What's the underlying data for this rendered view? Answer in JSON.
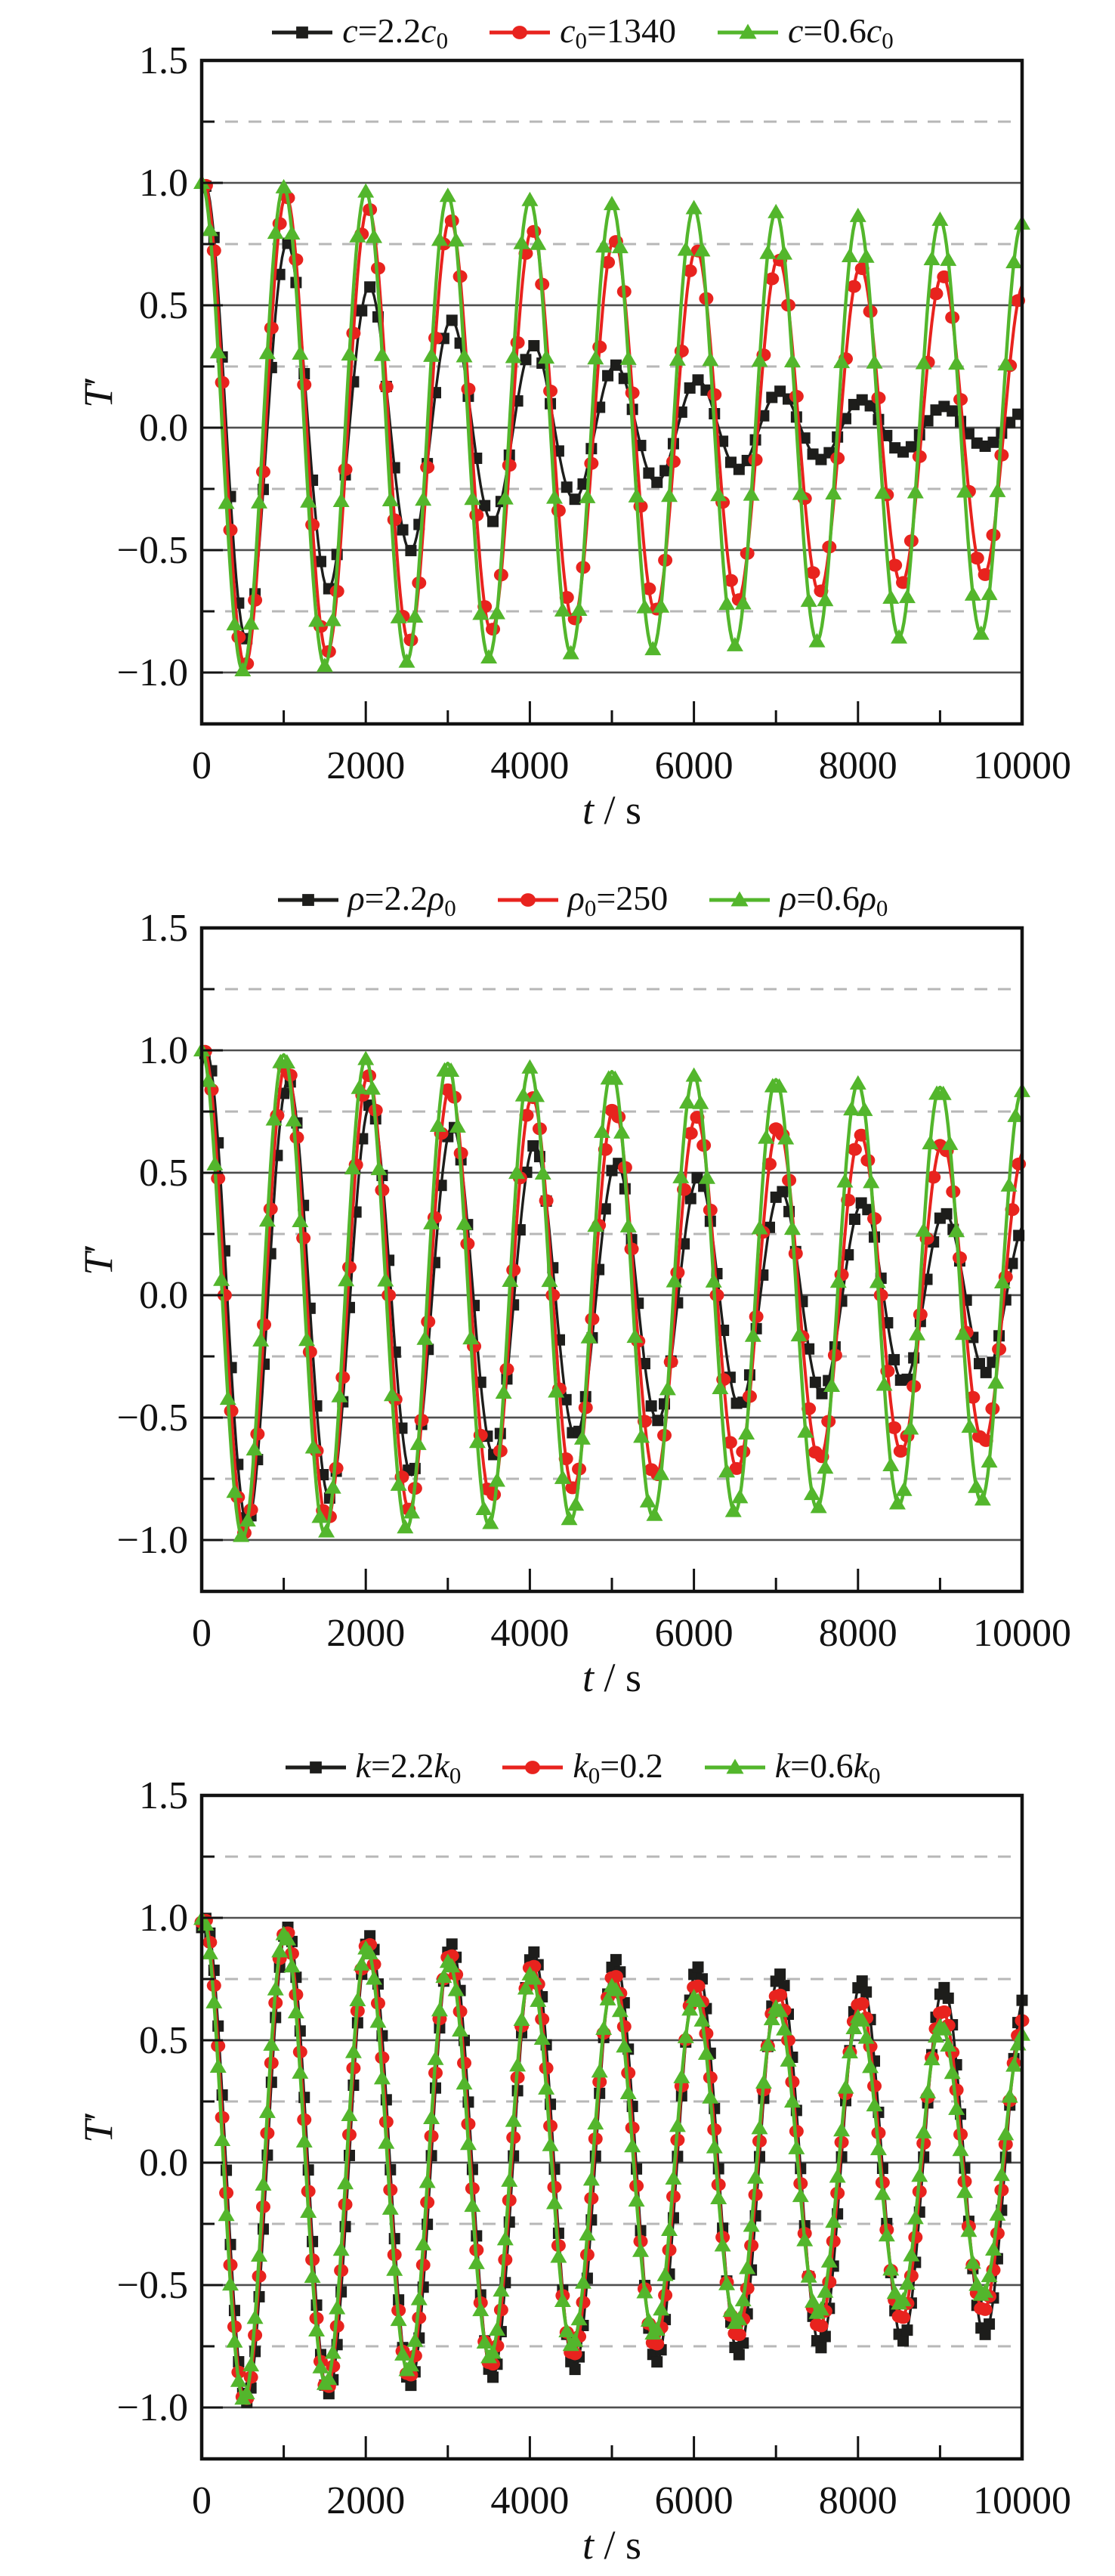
{
  "page": {
    "background": "#ffffff"
  },
  "colors": {
    "black_series": "#1d1d1b",
    "red_series": "#e8231e",
    "green_series": "#53b62c",
    "solid_grid": "#4f4f4f",
    "dashed_grid": "#b7b7b7",
    "spine": "#121212",
    "text": "#111111"
  },
  "axes": {
    "x": {
      "min": 0,
      "max": 10000,
      "major_step": 2000,
      "minor_step": 1000,
      "tick_values": [
        0,
        2000,
        4000,
        6000,
        8000,
        10000
      ],
      "tick_labels": [
        "0",
        "2000",
        "4000",
        "6000",
        "8000",
        "10000"
      ],
      "label_segments": [
        {
          "t": "t",
          "it": true
        },
        {
          "t": " / "
        },
        {
          "t": "s"
        }
      ]
    },
    "y": {
      "min": -1.21,
      "max": 1.5,
      "major_step": 0.5,
      "minor_step": 0.25,
      "tick_values": [
        1.5,
        1.0,
        0.5,
        0.0,
        -0.5,
        -1.0
      ],
      "tick_labels": [
        "1.5",
        "1.0",
        "0.5",
        "0.0",
        "−0.5",
        "−1.0"
      ],
      "minor_tick_values": [
        1.25,
        0.75,
        0.25,
        -0.25,
        -0.75
      ],
      "solid_gridlines": [
        1.0,
        0.5,
        0.0,
        -0.5,
        -1.0
      ],
      "dashed_gridlines": [
        1.25,
        0.75,
        0.25,
        -0.25,
        -0.75
      ],
      "label_segments": [
        {
          "t": "T",
          "it": true
        },
        {
          "t": "′"
        }
      ]
    },
    "grid": true
  },
  "chart_data": [
    {
      "id": "c-sensitivity",
      "type": "line",
      "xlabel": "t / s",
      "ylabel": "T′",
      "x_range": [
        0,
        10000
      ],
      "y_range": [
        -1.21,
        1.5
      ],
      "legend_position": "top-center",
      "legend": [
        {
          "name": "c=2.2c0",
          "segments": [
            {
              "t": "c",
              "it": true
            },
            {
              "t": "="
            },
            {
              "t": "2.2"
            },
            {
              "t": "c",
              "it": true
            },
            {
              "t": "0",
              "sub": true
            }
          ]
        },
        {
          "name": "c0=1340",
          "segments": [
            {
              "t": "c",
              "it": true
            },
            {
              "t": "0",
              "sub": true
            },
            {
              "t": "="
            },
            {
              "t": "1340"
            }
          ]
        },
        {
          "name": "c=0.6c0",
          "segments": [
            {
              "t": "c",
              "it": true
            },
            {
              "t": "="
            },
            {
              "t": "0.6"
            },
            {
              "t": "c",
              "it": true
            },
            {
              "t": "0",
              "sub": true
            }
          ]
        }
      ],
      "series": [
        {
          "name": "c=2.2c0",
          "color_key": "black_series",
          "marker": "square",
          "marker_interval_s": 100,
          "marker_offset_s": 50,
          "model": {
            "kind": "damped_cosine",
            "amplitude": 1.0,
            "period_s": 1000,
            "decay_tau_s": 3700,
            "phase_lag_s": 50
          },
          "cycle_peak_envelope": [
            1.0,
            0.763,
            0.583,
            0.444,
            0.339,
            0.259,
            0.197,
            0.151,
            0.115,
            0.088,
            0.067
          ]
        },
        {
          "name": "c0=1340",
          "color_key": "red_series",
          "marker": "circle",
          "marker_interval_s": 100,
          "marker_offset_s": 50,
          "model": {
            "kind": "damped_cosine",
            "amplitude": 1.0,
            "period_s": 1000,
            "decay_tau_s": 19000,
            "phase_lag_s": 30
          },
          "cycle_peak_envelope": [
            1.0,
            0.949,
            0.9,
            0.854,
            0.81,
            0.769,
            0.73,
            0.692,
            0.657,
            0.623,
            0.591
          ]
        },
        {
          "name": "c=0.6c0",
          "color_key": "green_series",
          "marker": "triangle",
          "marker_interval_s": 100,
          "marker_offset_s": 0,
          "model": {
            "kind": "damped_cosine",
            "amplitude": 1.0,
            "period_s": 1000,
            "decay_tau_s": 55000,
            "phase_lag_s": 0
          },
          "cycle_peak_envelope": [
            1.0,
            0.982,
            0.964,
            0.947,
            0.93,
            0.913,
            0.897,
            0.881,
            0.865,
            0.85,
            0.834
          ]
        }
      ]
    },
    {
      "id": "rho-sensitivity",
      "type": "line",
      "xlabel": "t / s",
      "ylabel": "T′",
      "x_range": [
        0,
        10000
      ],
      "y_range": [
        -1.21,
        1.5
      ],
      "legend_position": "top-center",
      "legend": [
        {
          "name": "rho=2.2rho0",
          "segments": [
            {
              "t": "ρ",
              "it": true
            },
            {
              "t": "="
            },
            {
              "t": "2.2"
            },
            {
              "t": "ρ",
              "it": true
            },
            {
              "t": "0",
              "sub": true
            }
          ]
        },
        {
          "name": "rho0=250",
          "segments": [
            {
              "t": "ρ",
              "it": true
            },
            {
              "t": "0",
              "sub": true
            },
            {
              "t": "="
            },
            {
              "t": "250"
            }
          ]
        },
        {
          "name": "rho=0.6rho0",
          "segments": [
            {
              "t": "ρ",
              "it": true
            },
            {
              "t": "="
            },
            {
              "t": "0.6"
            },
            {
              "t": "ρ",
              "it": true
            },
            {
              "t": "0",
              "sub": true
            }
          ]
        }
      ],
      "series": [
        {
          "name": "rho=2.2rho0",
          "color_key": "black_series",
          "marker": "square",
          "marker_interval_s": 80,
          "marker_offset_s": 40,
          "model": {
            "kind": "damped_cosine",
            "amplitude": 1.0,
            "period_s": 1000,
            "decay_tau_s": 8300,
            "phase_lag_s": 60
          },
          "cycle_peak_envelope": [
            1.0,
            0.886,
            0.786,
            0.697,
            0.618,
            0.548,
            0.486,
            0.43,
            0.381,
            0.338,
            0.3
          ]
        },
        {
          "name": "rho0=250",
          "color_key": "red_series",
          "marker": "circle",
          "marker_interval_s": 80,
          "marker_offset_s": 40,
          "model": {
            "kind": "damped_cosine",
            "amplitude": 1.0,
            "period_s": 1000,
            "decay_tau_s": 19000,
            "phase_lag_s": 30
          },
          "cycle_peak_envelope": [
            1.0,
            0.949,
            0.9,
            0.854,
            0.81,
            0.769,
            0.73,
            0.692,
            0.657,
            0.623,
            0.591
          ]
        },
        {
          "name": "rho=0.6rho0",
          "color_key": "green_series",
          "marker": "triangle",
          "marker_interval_s": 80,
          "marker_offset_s": 0,
          "model": {
            "kind": "damped_cosine",
            "amplitude": 1.0,
            "period_s": 1000,
            "decay_tau_s": 55000,
            "phase_lag_s": 0
          },
          "cycle_peak_envelope": [
            1.0,
            0.982,
            0.964,
            0.947,
            0.93,
            0.913,
            0.897,
            0.881,
            0.865,
            0.85,
            0.834
          ]
        }
      ]
    },
    {
      "id": "k-sensitivity",
      "type": "line",
      "xlabel": "t / s",
      "ylabel": "T′",
      "x_range": [
        0,
        10000
      ],
      "y_range": [
        -1.21,
        1.5
      ],
      "legend_position": "top-center",
      "legend": [
        {
          "name": "k=2.2k0",
          "segments": [
            {
              "t": "k",
              "it": true
            },
            {
              "t": "="
            },
            {
              "t": "2.2"
            },
            {
              "t": "k",
              "it": true
            },
            {
              "t": "0",
              "sub": true
            }
          ]
        },
        {
          "name": "k0=0.2",
          "segments": [
            {
              "t": "k",
              "it": true
            },
            {
              "t": "0",
              "sub": true
            },
            {
              "t": "="
            },
            {
              "t": "0.2"
            }
          ]
        },
        {
          "name": "k=0.6k0",
          "segments": [
            {
              "t": "k",
              "it": true
            },
            {
              "t": "="
            },
            {
              "t": "0.6"
            },
            {
              "t": "k",
              "it": true
            },
            {
              "t": "0",
              "sub": true
            }
          ]
        }
      ],
      "series": [
        {
          "name": "k=2.2k0",
          "color_key": "black_series",
          "marker": "square",
          "marker_interval_s": 50,
          "marker_offset_s": 0,
          "model": {
            "kind": "damped_cosine",
            "amplitude": 1.0,
            "period_s": 1000,
            "decay_tau_s": 27000,
            "phase_lag_s": 45
          },
          "cycle_peak_envelope": [
            1.0,
            0.964,
            0.929,
            0.895,
            0.863,
            0.831,
            0.801,
            0.772,
            0.744,
            0.717,
            0.691
          ]
        },
        {
          "name": "k0=0.2",
          "color_key": "red_series",
          "marker": "circle",
          "marker_interval_s": 50,
          "marker_offset_s": 0,
          "model": {
            "kind": "damped_cosine",
            "amplitude": 1.0,
            "period_s": 1000,
            "decay_tau_s": 19000,
            "phase_lag_s": 30
          },
          "cycle_peak_envelope": [
            1.0,
            0.949,
            0.9,
            0.854,
            0.81,
            0.769,
            0.73,
            0.692,
            0.657,
            0.623,
            0.591
          ]
        },
        {
          "name": "k=0.6k0",
          "color_key": "green_series",
          "marker": "triangle",
          "marker_interval_s": 50,
          "marker_offset_s": 0,
          "model": {
            "kind": "damped_cosine",
            "amplitude": 1.0,
            "period_s": 1000,
            "decay_tau_s": 15500,
            "phase_lag_s": 15
          },
          "cycle_peak_envelope": [
            1.0,
            0.938,
            0.879,
            0.824,
            0.772,
            0.724,
            0.679,
            0.636,
            0.596,
            0.559,
            0.524
          ]
        }
      ]
    }
  ],
  "layout_note": "three stacked panels"
}
